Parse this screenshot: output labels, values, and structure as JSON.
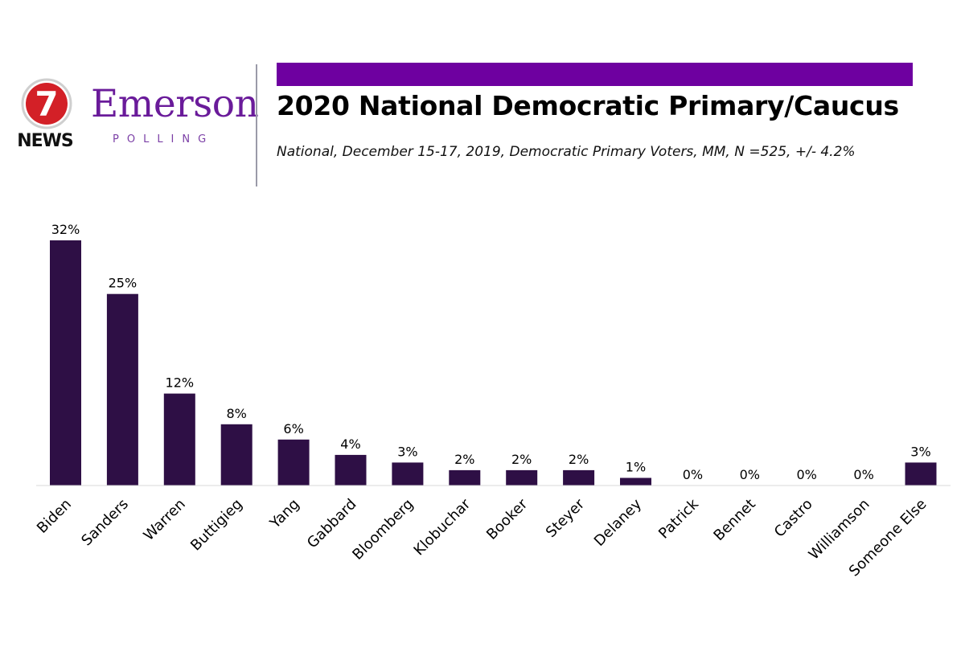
{
  "logo": {
    "news_number": "7",
    "news_text": "NEWS",
    "brand_name": "Emerson",
    "brand_sub": "POLLING"
  },
  "title": "2020 National Democratic Primary/Caucus",
  "subtitle": "National, December 15-17, 2019, Democratic Primary Voters, MM, N =525, +/- 4.2%",
  "colors": {
    "bar": "#2e0f45",
    "accent": "#6e00a0",
    "logo_red": "#d32027",
    "brand_purple": "#6a1b9a"
  },
  "chart_data": {
    "type": "bar",
    "categories": [
      "Biden",
      "Sanders",
      "Warren",
      "Buttigieg",
      "Yang",
      "Gabbard",
      "Bloomberg",
      "Klobuchar",
      "Booker",
      "Steyer",
      "Delaney",
      "Patrick",
      "Bennet",
      "Castro",
      "Williamson",
      "Someone Else"
    ],
    "values": [
      32,
      25,
      12,
      8,
      6,
      4,
      3,
      2,
      2,
      2,
      1,
      0,
      0,
      0,
      0,
      3
    ],
    "value_labels": [
      "32%",
      "25%",
      "12%",
      "8%",
      "6%",
      "4%",
      "3%",
      "2%",
      "2%",
      "2%",
      "1%",
      "0%",
      "0%",
      "0%",
      "0%",
      "3%"
    ],
    "ylim": [
      0,
      32
    ],
    "grid": false,
    "legend": "none"
  }
}
